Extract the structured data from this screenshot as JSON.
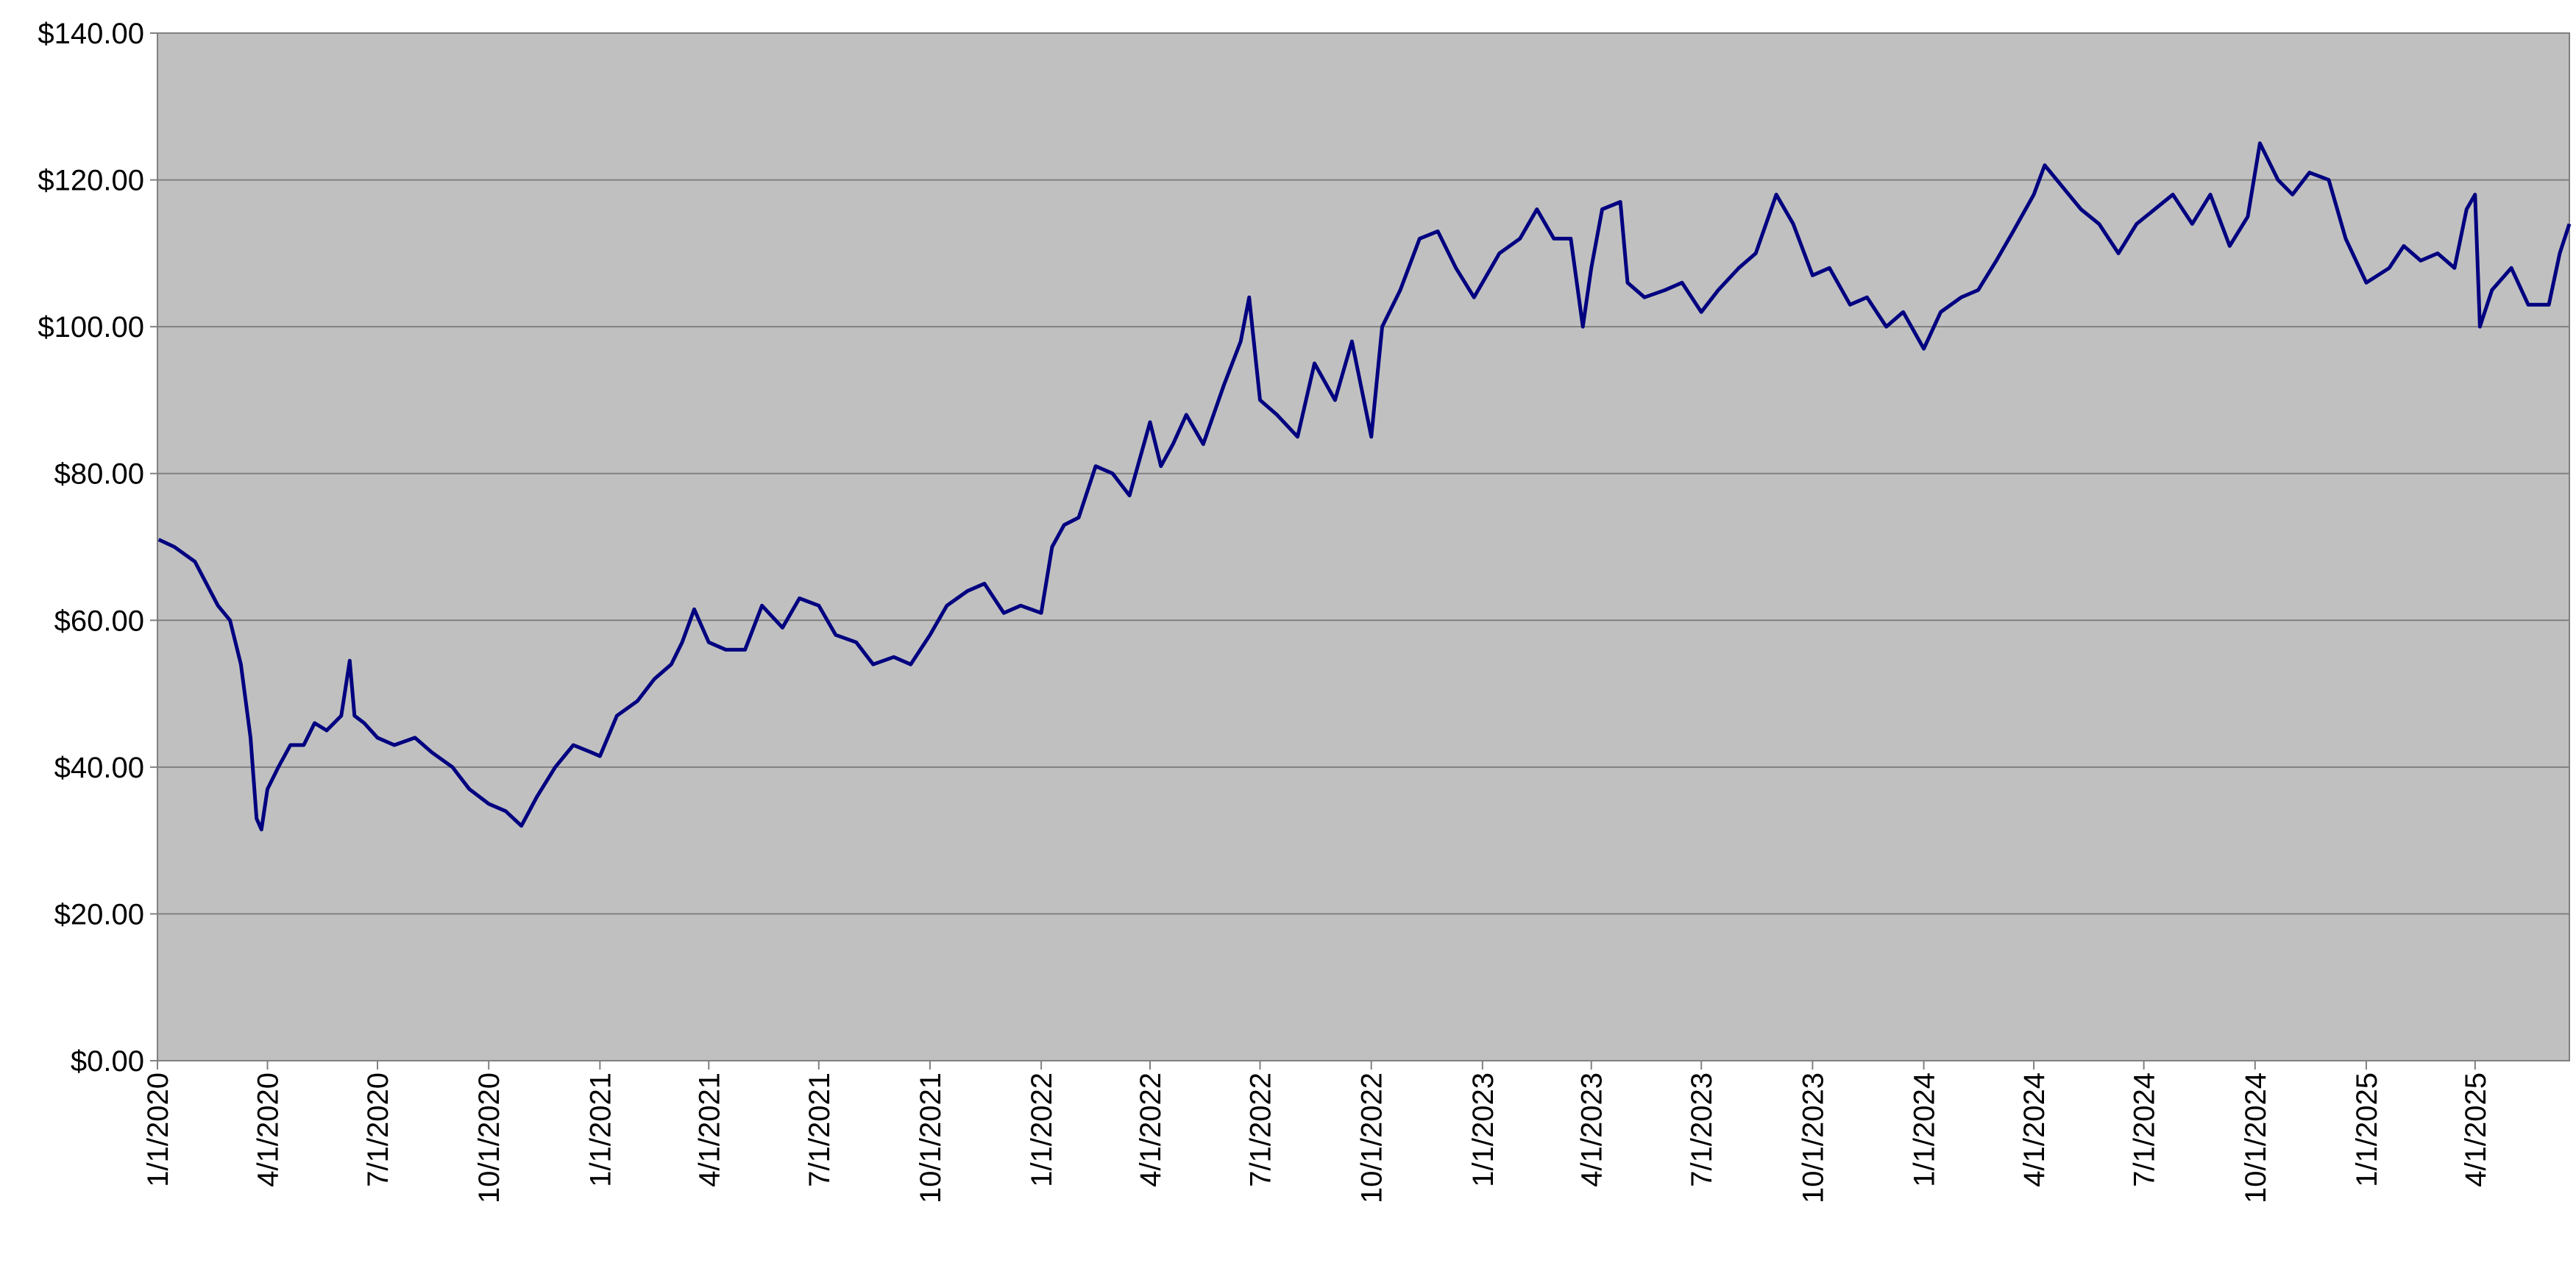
{
  "chart_data": {
    "type": "line",
    "x": [
      "1/2/2020",
      "1/15/2020",
      "2/1/2020",
      "2/20/2020",
      "3/1/2020",
      "3/10/2020",
      "3/18/2020",
      "3/23/2020",
      "3/27/2020",
      "4/1/2020",
      "4/10/2020",
      "4/20/2020",
      "5/1/2020",
      "5/10/2020",
      "5/20/2020",
      "6/1/2020",
      "6/8/2020",
      "6/12/2020",
      "6/20/2020",
      "7/1/2020",
      "7/15/2020",
      "8/1/2020",
      "8/15/2020",
      "9/1/2020",
      "9/15/2020",
      "10/1/2020",
      "10/15/2020",
      "10/28/2020",
      "11/10/2020",
      "11/25/2020",
      "12/10/2020",
      "12/25/2020",
      "1/1/2021",
      "1/15/2021",
      "2/1/2021",
      "2/15/2021",
      "3/1/2021",
      "3/10/2021",
      "3/20/2021",
      "4/1/2021",
      "4/15/2021",
      "5/1/2021",
      "5/15/2021",
      "6/1/2021",
      "6/15/2021",
      "7/1/2021",
      "7/15/2021",
      "8/1/2021",
      "8/15/2021",
      "9/1/2021",
      "9/15/2021",
      "10/1/2021",
      "10/15/2021",
      "11/1/2021",
      "11/15/2021",
      "12/1/2021",
      "12/15/2021",
      "1/1/2022",
      "1/10/2022",
      "1/20/2022",
      "2/1/2022",
      "2/15/2022",
      "3/1/2022",
      "3/15/2022",
      "4/1/2022",
      "4/10/2022",
      "4/20/2022",
      "5/1/2022",
      "5/15/2022",
      "6/1/2022",
      "6/15/2022",
      "6/22/2022",
      "7/1/2022",
      "7/15/2022",
      "8/1/2022",
      "8/15/2022",
      "9/1/2022",
      "9/15/2022",
      "10/1/2022",
      "10/10/2022",
      "10/25/2022",
      "11/10/2022",
      "11/25/2022",
      "12/10/2022",
      "12/25/2022",
      "1/1/2023",
      "1/15/2023",
      "2/1/2023",
      "2/15/2023",
      "3/1/2023",
      "3/15/2023",
      "3/25/2023",
      "4/1/2023",
      "4/10/2023",
      "4/25/2023",
      "5/1/2023",
      "5/15/2023",
      "6/1/2023",
      "6/15/2023",
      "7/1/2023",
      "7/15/2023",
      "8/1/2023",
      "8/15/2023",
      "9/1/2023",
      "9/15/2023",
      "10/1/2023",
      "10/15/2023",
      "11/1/2023",
      "11/15/2023",
      "12/1/2023",
      "12/15/2023",
      "1/1/2024",
      "1/15/2024",
      "2/1/2024",
      "2/15/2024",
      "3/1/2024",
      "3/15/2024",
      "4/1/2024",
      "4/10/2024",
      "4/25/2024",
      "5/10/2024",
      "5/25/2024",
      "6/10/2024",
      "6/25/2024",
      "7/10/2024",
      "7/25/2024",
      "8/10/2024",
      "8/25/2024",
      "9/10/2024",
      "9/25/2024",
      "10/5/2024",
      "10/20/2024",
      "11/1/2024",
      "11/15/2024",
      "12/1/2024",
      "12/15/2024",
      "1/1/2025",
      "1/20/2025",
      "2/1/2025",
      "2/15/2025",
      "3/1/2025",
      "3/15/2025",
      "3/25/2025",
      "4/1/2025",
      "4/5/2025",
      "4/15/2025",
      "5/1/2025",
      "5/15/2025",
      "6/1/2025",
      "6/10/2025",
      "6/18/2025"
    ],
    "series": [
      {
        "color": "#000080",
        "values": [
          71,
          70,
          68,
          62,
          60,
          54,
          44,
          33,
          31.5,
          37,
          40,
          43,
          43,
          46,
          45,
          47,
          54.5,
          47,
          46,
          44,
          43,
          44,
          42,
          40,
          37,
          35,
          34,
          32,
          36,
          40,
          43,
          42,
          41.5,
          47,
          49,
          52,
          54,
          57,
          61.5,
          57,
          56,
          56,
          62,
          59,
          63,
          62,
          58,
          57,
          54,
          55,
          54,
          58,
          62,
          64,
          65,
          61,
          62,
          61,
          70,
          73,
          74,
          81,
          80,
          77,
          87,
          81,
          84,
          88,
          84,
          92,
          98,
          104,
          90,
          88,
          85,
          95,
          90,
          98,
          85,
          100,
          105,
          112,
          113,
          108,
          104,
          106,
          110,
          112,
          116,
          112,
          112,
          100,
          108,
          116,
          117,
          106,
          104,
          105,
          106,
          102,
          105,
          108,
          110,
          118,
          114,
          107,
          108,
          103,
          104,
          100,
          102,
          97,
          102,
          104,
          105,
          109,
          113,
          118,
          122,
          119,
          116,
          114,
          110,
          114,
          116,
          118,
          114,
          118,
          111,
          115,
          125,
          120,
          118,
          121,
          120,
          112,
          106,
          108,
          111,
          109,
          110,
          108,
          116,
          118,
          100,
          105,
          108,
          103,
          103,
          110,
          114
        ]
      }
    ],
    "xlim": [
      "1/1/2020",
      "6/18/2025"
    ],
    "xticks": [
      "1/1/2020",
      "4/1/2020",
      "7/1/2020",
      "10/1/2020",
      "1/1/2021",
      "4/1/2021",
      "7/1/2021",
      "10/1/2021",
      "1/1/2022",
      "4/1/2022",
      "7/1/2022",
      "10/1/2022",
      "1/1/2023",
      "4/1/2023",
      "7/1/2023",
      "10/1/2023",
      "1/1/2024",
      "4/1/2024",
      "7/1/2024",
      "10/1/2024",
      "1/1/2025",
      "4/1/2025"
    ],
    "ylim": [
      0,
      140
    ],
    "yticks": [
      {
        "value": 0,
        "label": "$0.00"
      },
      {
        "value": 20,
        "label": "$20.00"
      },
      {
        "value": 40,
        "label": "$40.00"
      },
      {
        "value": 60,
        "label": "$60.00"
      },
      {
        "value": 80,
        "label": "$80.00"
      },
      {
        "value": 100,
        "label": "$100.00"
      },
      {
        "value": 120,
        "label": "$120.00"
      },
      {
        "value": 140,
        "label": "$140.00"
      }
    ],
    "grid": true
  }
}
